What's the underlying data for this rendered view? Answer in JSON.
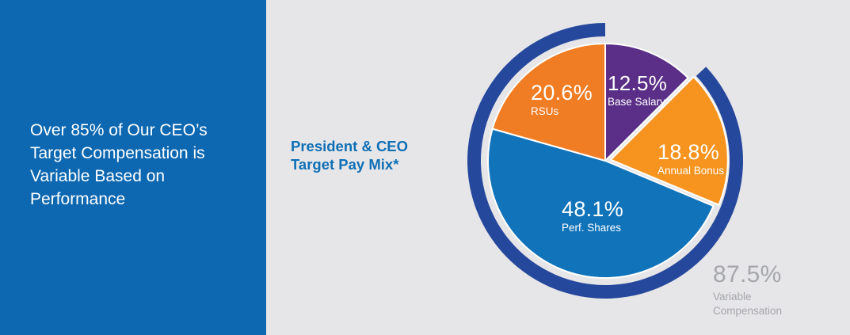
{
  "left_panel": {
    "message": "Over 85% of Our CEO’s Target Compensation is Variable Based on Performance",
    "background_color": "#0D68B1",
    "text_color": "#FFFFFF"
  },
  "chart_panel": {
    "background_color": "#E6E6E8",
    "title_line1": "President & CEO",
    "title_line2": "Target Pay Mix*",
    "title_color": "#1070B6",
    "gray_text_color": "#A5A7AB"
  },
  "chart_data": {
    "type": "pie",
    "title": "President & CEO Target Pay Mix*",
    "start_angle_deg": 0,
    "direction": "clockwise",
    "slice_border_color": "#FFFFFF",
    "slices": [
      {
        "name": "Base Salary",
        "value": 12.5,
        "value_label": "12.5%",
        "color": "#5B2F87",
        "exploded": false
      },
      {
        "name": "Annual Bonus",
        "value": 18.8,
        "value_label": "18.8%",
        "color": "#F79420",
        "exploded": true
      },
      {
        "name": "Perf. Shares",
        "value": 48.1,
        "value_label": "48.1%",
        "color": "#1173B9",
        "exploded": false
      },
      {
        "name": "RSUs",
        "value": 20.6,
        "value_label": "20.6%",
        "color": "#F07D23",
        "exploded": false
      }
    ],
    "outer_ring": {
      "label": "Variable Compensation",
      "value": 87.5,
      "value_label": "87.5%",
      "color": "#26489C",
      "covers": [
        "Annual Bonus",
        "Perf. Shares",
        "RSUs"
      ]
    }
  }
}
